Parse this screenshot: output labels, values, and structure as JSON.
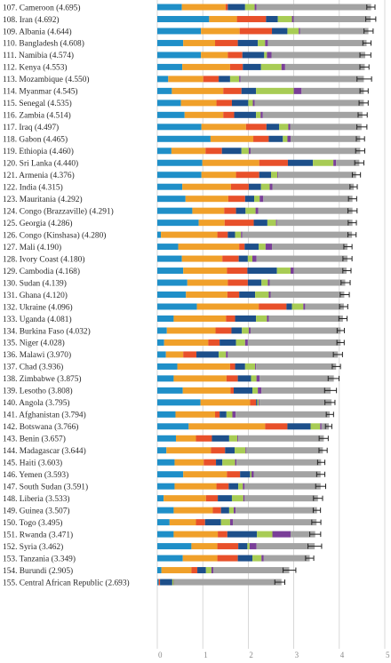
{
  "colors": {
    "segments": [
      "#1f8fc8",
      "#f0a02a",
      "#e8502a",
      "#1d4f8a",
      "#a8cc55",
      "#7a3f98",
      "#a3a3a3"
    ],
    "gridline": "#cfcfcf",
    "errorbar": "#222222"
  },
  "chart_data": {
    "type": "bar",
    "orientation": "horizontal",
    "stacked": true,
    "xlim": [
      0,
      5
    ],
    "x_ticks": [
      "0",
      "1",
      "2",
      "3",
      "4",
      "5"
    ],
    "grid": true,
    "categories": [
      "107. Cameroon (4.695)",
      "108. Iran (4.692)",
      "109. Albania (4.644)",
      "110. Bangladesh (4.608)",
      "111. Namibia (4.574)",
      "112. Kenya (4.553)",
      "113. Mozambique (4.550)",
      "114. Myanmar (4.545)",
      "115. Senegal (4.535)",
      "116. Zambia (4.514)",
      "117. Iraq (4.497)",
      "118. Gabon (4.465)",
      "119. Ethiopia (4.460)",
      "120. Sri Lanka (4.440)",
      "121. Armenia (4.376)",
      "122. India (4.315)",
      "123. Mauritania (4.292)",
      "124. Congo (Brazzaville) (4.291)",
      "125. Georgia (4.286)",
      "126. Congo (Kinshasa) (4.280)",
      "127. Mali (4.190)",
      "128. Ivory Coast (4.180)",
      "129. Cambodia (4.168)",
      "130. Sudan (4.139)",
      "131. Ghana (4.120)",
      "132. Ukraine (4.096)",
      "133. Uganda (4.081)",
      "134. Burkina Faso (4.032)",
      "135. Niger (4.028)",
      "136. Malawi (3.970)",
      "137. Chad (3.936)",
      "138. Zimbabwe (3.875)",
      "139. Lesotho (3.808)",
      "140. Angola (3.795)",
      "141. Afghanistan (3.794)",
      "142. Botswana (3.766)",
      "143. Benin (3.657)",
      "144. Madagascar (3.644)",
      "145. Haiti (3.603)",
      "146. Yemen (3.593)",
      "147. South Sudan (3.591)",
      "148. Liberia (3.533)",
      "149. Guinea (3.507)",
      "150. Togo (3.495)",
      "151. Rwanda (3.471)",
      "152. Syria (3.462)",
      "153. Tanzania (3.349)",
      "154. Burundi (2.905)",
      "155. Central African Republic (2.693)"
    ],
    "totals": [
      4.695,
      4.692,
      4.644,
      4.608,
      4.574,
      4.553,
      4.55,
      4.545,
      4.535,
      4.514,
      4.497,
      4.465,
      4.46,
      4.44,
      4.376,
      4.315,
      4.292,
      4.291,
      4.286,
      4.28,
      4.19,
      4.18,
      4.168,
      4.139,
      4.12,
      4.096,
      4.081,
      4.032,
      4.028,
      3.97,
      3.936,
      3.875,
      3.808,
      3.795,
      3.794,
      3.766,
      3.657,
      3.644,
      3.603,
      3.593,
      3.591,
      3.533,
      3.507,
      3.495,
      3.471,
      3.462,
      3.349,
      2.905,
      2.693
    ],
    "segments": [
      [
        0.54,
        0.96,
        0.05,
        0.38,
        0.21,
        0.04,
        2.52
      ],
      [
        1.14,
        0.61,
        0.64,
        0.26,
        0.31,
        0.04,
        1.69
      ],
      [
        0.96,
        0.85,
        0.71,
        0.34,
        0.25,
        0.03,
        1.5
      ],
      [
        0.57,
        0.7,
        0.5,
        0.44,
        0.16,
        0.06,
        2.17
      ],
      [
        0.96,
        0.59,
        0.32,
        0.48,
        0.06,
        0.1,
        2.06
      ],
      [
        0.55,
        1.05,
        0.28,
        0.4,
        0.45,
        0.08,
        1.75
      ],
      [
        0.24,
        0.77,
        0.34,
        0.25,
        0.2,
        0.03,
        2.71
      ],
      [
        0.32,
        1.13,
        0.4,
        0.32,
        0.83,
        0.17,
        1.37
      ],
      [
        0.52,
        0.78,
        0.34,
        0.36,
        0.1,
        0.04,
        2.4
      ],
      [
        0.6,
        0.85,
        0.24,
        0.48,
        0.1,
        0.05,
        2.19
      ],
      [
        0.97,
        0.98,
        0.45,
        0.28,
        0.2,
        0.04,
        1.57
      ],
      [
        1.17,
        0.94,
        0.34,
        0.31,
        0.1,
        0.07,
        1.53
      ],
      [
        0.31,
        0.75,
        0.36,
        0.43,
        0.16,
        0.04,
        2.41
      ],
      [
        0.99,
        1.25,
        0.63,
        0.55,
        0.45,
        0.06,
        0.51
      ],
      [
        0.97,
        0.76,
        0.51,
        0.26,
        0.14,
        0.02,
        1.71
      ],
      [
        0.55,
        1.07,
        0.39,
        0.27,
        0.19,
        0.06,
        1.79
      ],
      [
        0.62,
        0.94,
        0.37,
        0.2,
        0.12,
        0.08,
        1.96
      ],
      [
        0.77,
        0.7,
        0.26,
        0.21,
        0.22,
        0.06,
        2.07
      ],
      [
        0.91,
        0.57,
        0.64,
        0.3,
        0.19,
        0.02,
        1.66
      ],
      [
        0.08,
        1.24,
        0.23,
        0.16,
        0.13,
        0.03,
        2.41
      ],
      [
        0.46,
        1.34,
        0.12,
        0.31,
        0.15,
        0.14,
        1.66
      ],
      [
        0.54,
        0.89,
        0.36,
        0.2,
        0.1,
        0.09,
        2.0
      ],
      [
        0.57,
        0.96,
        0.45,
        0.65,
        0.3,
        0.07,
        1.16
      ],
      [
        0.66,
        0.89,
        0.44,
        0.3,
        0.14,
        0.04,
        1.66
      ],
      [
        0.63,
        0.91,
        0.26,
        0.35,
        0.3,
        0.04,
        1.62
      ],
      [
        0.87,
        1.36,
        0.61,
        0.12,
        0.25,
        0.04,
        0.85
      ],
      [
        0.36,
        1.15,
        0.2,
        0.46,
        0.24,
        0.04,
        1.63
      ],
      [
        0.21,
        1.07,
        0.35,
        0.23,
        0.15,
        0.04,
        1.98
      ],
      [
        0.15,
        0.97,
        0.25,
        0.36,
        0.2,
        0.06,
        2.04
      ],
      [
        0.19,
        0.38,
        0.29,
        0.49,
        0.16,
        0.04,
        2.42
      ],
      [
        0.44,
        1.16,
        0.11,
        0.22,
        0.22,
        0.02,
        1.76
      ],
      [
        0.36,
        1.16,
        0.25,
        0.29,
        0.12,
        0.07,
        1.63
      ],
      [
        0.56,
        1.05,
        0.07,
        0.41,
        0.12,
        0.08,
        1.52
      ],
      [
        0.95,
        1.09,
        0.13,
        0.03,
        0.03,
        0.02,
        1.58
      ],
      [
        0.4,
        0.87,
        0.1,
        0.15,
        0.13,
        0.07,
        2.07
      ],
      [
        0.69,
        1.68,
        0.49,
        0.51,
        0.21,
        0.03,
        0.16
      ],
      [
        0.41,
        0.44,
        0.35,
        0.38,
        0.18,
        0.02,
        1.88
      ],
      [
        0.2,
        0.98,
        0.31,
        0.21,
        0.24,
        0.02,
        1.68
      ],
      [
        0.38,
        0.64,
        0.27,
        0.14,
        0.28,
        0.03,
        1.86
      ],
      [
        0.57,
        0.96,
        0.29,
        0.22,
        0.03,
        0.05,
        1.47
      ],
      [
        0.38,
        0.92,
        0.27,
        0.21,
        0.1,
        0.04,
        1.67
      ],
      [
        0.14,
        0.93,
        0.26,
        0.31,
        0.25,
        0.03,
        1.61
      ],
      [
        0.36,
        0.86,
        0.18,
        0.18,
        0.1,
        0.04,
        1.79
      ],
      [
        0.27,
        0.58,
        0.2,
        0.35,
        0.2,
        0.06,
        1.84
      ],
      [
        0.36,
        0.97,
        0.21,
        0.65,
        0.34,
        0.4,
        0.54
      ],
      [
        0.75,
        0.57,
        0.46,
        0.2,
        0.05,
        0.15,
        1.28
      ],
      [
        0.56,
        0.76,
        0.45,
        0.32,
        0.2,
        0.05,
        1.01
      ],
      [
        0.09,
        0.66,
        0.13,
        0.19,
        0.12,
        0.04,
        1.67
      ],
      [
        0.03,
        0.0,
        0.03,
        0.27,
        0.03,
        0.01,
        2.36
      ]
    ],
    "error_margins": [
      0.09,
      0.11,
      0.1,
      0.09,
      0.12,
      0.1,
      0.16,
      0.09,
      0.1,
      0.1,
      0.11,
      0.09,
      0.1,
      0.1,
      0.09,
      0.08,
      0.09,
      0.1,
      0.09,
      0.09,
      0.09,
      0.1,
      0.09,
      0.1,
      0.1,
      0.09,
      0.09,
      0.08,
      0.08,
      0.1,
      0.09,
      0.12,
      0.13,
      0.11,
      0.08,
      0.07,
      0.1,
      0.09,
      0.08,
      0.09,
      0.11,
      0.1,
      0.08,
      0.1,
      0.12,
      0.15,
      0.09,
      0.14,
      0.11
    ]
  }
}
